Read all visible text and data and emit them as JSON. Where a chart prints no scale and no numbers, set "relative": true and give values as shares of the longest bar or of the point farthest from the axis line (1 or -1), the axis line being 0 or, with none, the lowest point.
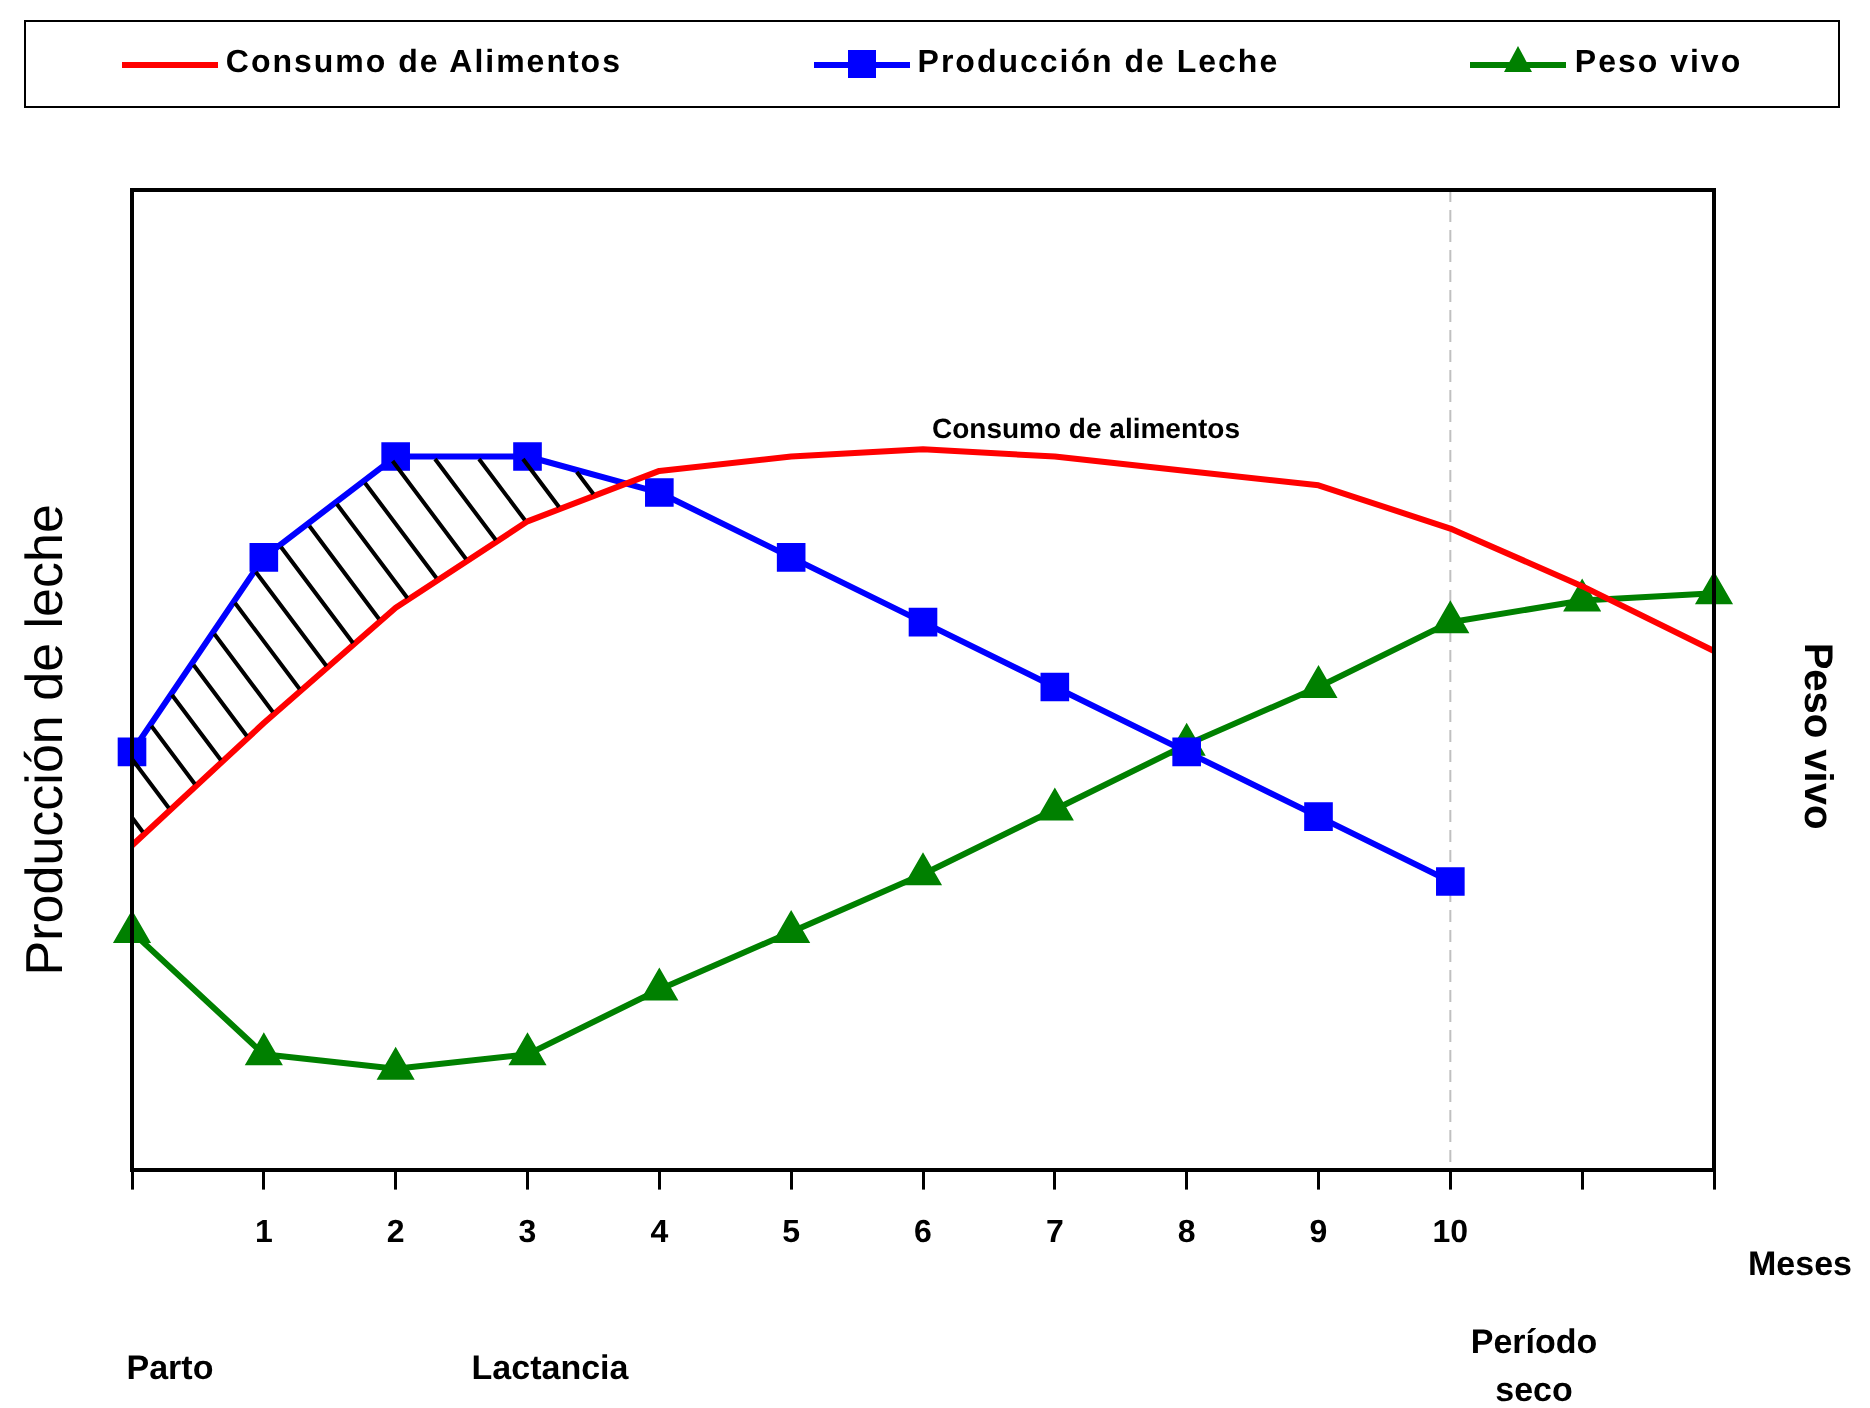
{
  "chart_data": {
    "type": "line",
    "relative": true,
    "ylabel": "Producción de leche",
    "y2label": "Peso vivo",
    "xlabel": "Meses",
    "categories": [
      null,
      "1",
      "2",
      "3",
      "4",
      "5",
      "6",
      "7",
      "8",
      "9",
      "10",
      null,
      null
    ],
    "legend": "top",
    "grid": false,
    "line_style": "solid",
    "series": [
      {
        "name": "Consumo de Alimentos",
        "color": "#ff0000",
        "marker": "none",
        "values": [
          0.45,
          0.62,
          0.78,
          0.9,
          0.97,
          0.99,
          1,
          0.99,
          0.97,
          0.95,
          0.89,
          0.81,
          0.72
        ]
      },
      {
        "name": "Producción de Leche",
        "color": "#0000ff",
        "marker": "square",
        "values": [
          0.58,
          0.85,
          0.99,
          0.99,
          0.94,
          0.85,
          0.76,
          0.67,
          0.58,
          0.49,
          0.4,
          null,
          null
        ]
      },
      {
        "name": "Peso vivo",
        "color": "#008000",
        "marker": "triangle",
        "values": [
          0.33,
          0.16,
          0.14,
          0.16,
          0.25,
          0.33,
          0.41,
          0.5,
          0.59,
          0.67,
          0.76,
          0.79,
          0.8
        ]
      }
    ],
    "ref_lines": [
      {
        "axis": "x",
        "value": "10",
        "color": "#c0c0c0",
        "line_style": "dashed"
      }
    ],
    "annotations": [
      "Consumo de alimentos",
      "Parto",
      "Lactancia",
      "Período seco"
    ]
  }
}
